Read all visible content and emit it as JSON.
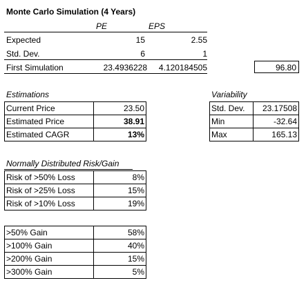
{
  "title": "Monte Carlo Simulation (4 Years)",
  "columns": {
    "pe": "PE",
    "eps": "EPS"
  },
  "inputs": [
    {
      "label": "Expected",
      "pe": "15",
      "eps": "2.55"
    },
    {
      "label": "Std. Dev.",
      "pe": "6",
      "eps": "1"
    }
  ],
  "first_simulation": {
    "label": "First Simulation",
    "pe": "23.4936228",
    "eps": "4.120184505",
    "result": "96.80"
  },
  "estimations": {
    "heading": "Estimations",
    "rows": [
      {
        "label": "Current Price",
        "value": "23.50"
      },
      {
        "label": "Estimated Price",
        "value": "38.91"
      },
      {
        "label": "Estimated CAGR",
        "value": "13%"
      }
    ]
  },
  "variability": {
    "heading": "Variability",
    "rows": [
      {
        "label": "Std. Dev.",
        "value": "23.17508"
      },
      {
        "label": "Min",
        "value": "-32.64"
      },
      {
        "label": "Max",
        "value": "165.13"
      }
    ]
  },
  "risk": {
    "heading": "Normally Distributed Risk/Gain",
    "loss_rows": [
      {
        "label": "Risk of >50% Loss",
        "value": "8%"
      },
      {
        "label": "Risk of >25% Loss",
        "value": "15%"
      },
      {
        "label": "Risk of >10% Loss",
        "value": "19%"
      }
    ],
    "gain_rows": [
      {
        "label": ">50% Gain",
        "value": "58%"
      },
      {
        "label": ">100% Gain",
        "value": "40%"
      },
      {
        "label": ">200% Gain",
        "value": "15%"
      },
      {
        "label": ">300% Gain",
        "value": "5%"
      }
    ]
  }
}
